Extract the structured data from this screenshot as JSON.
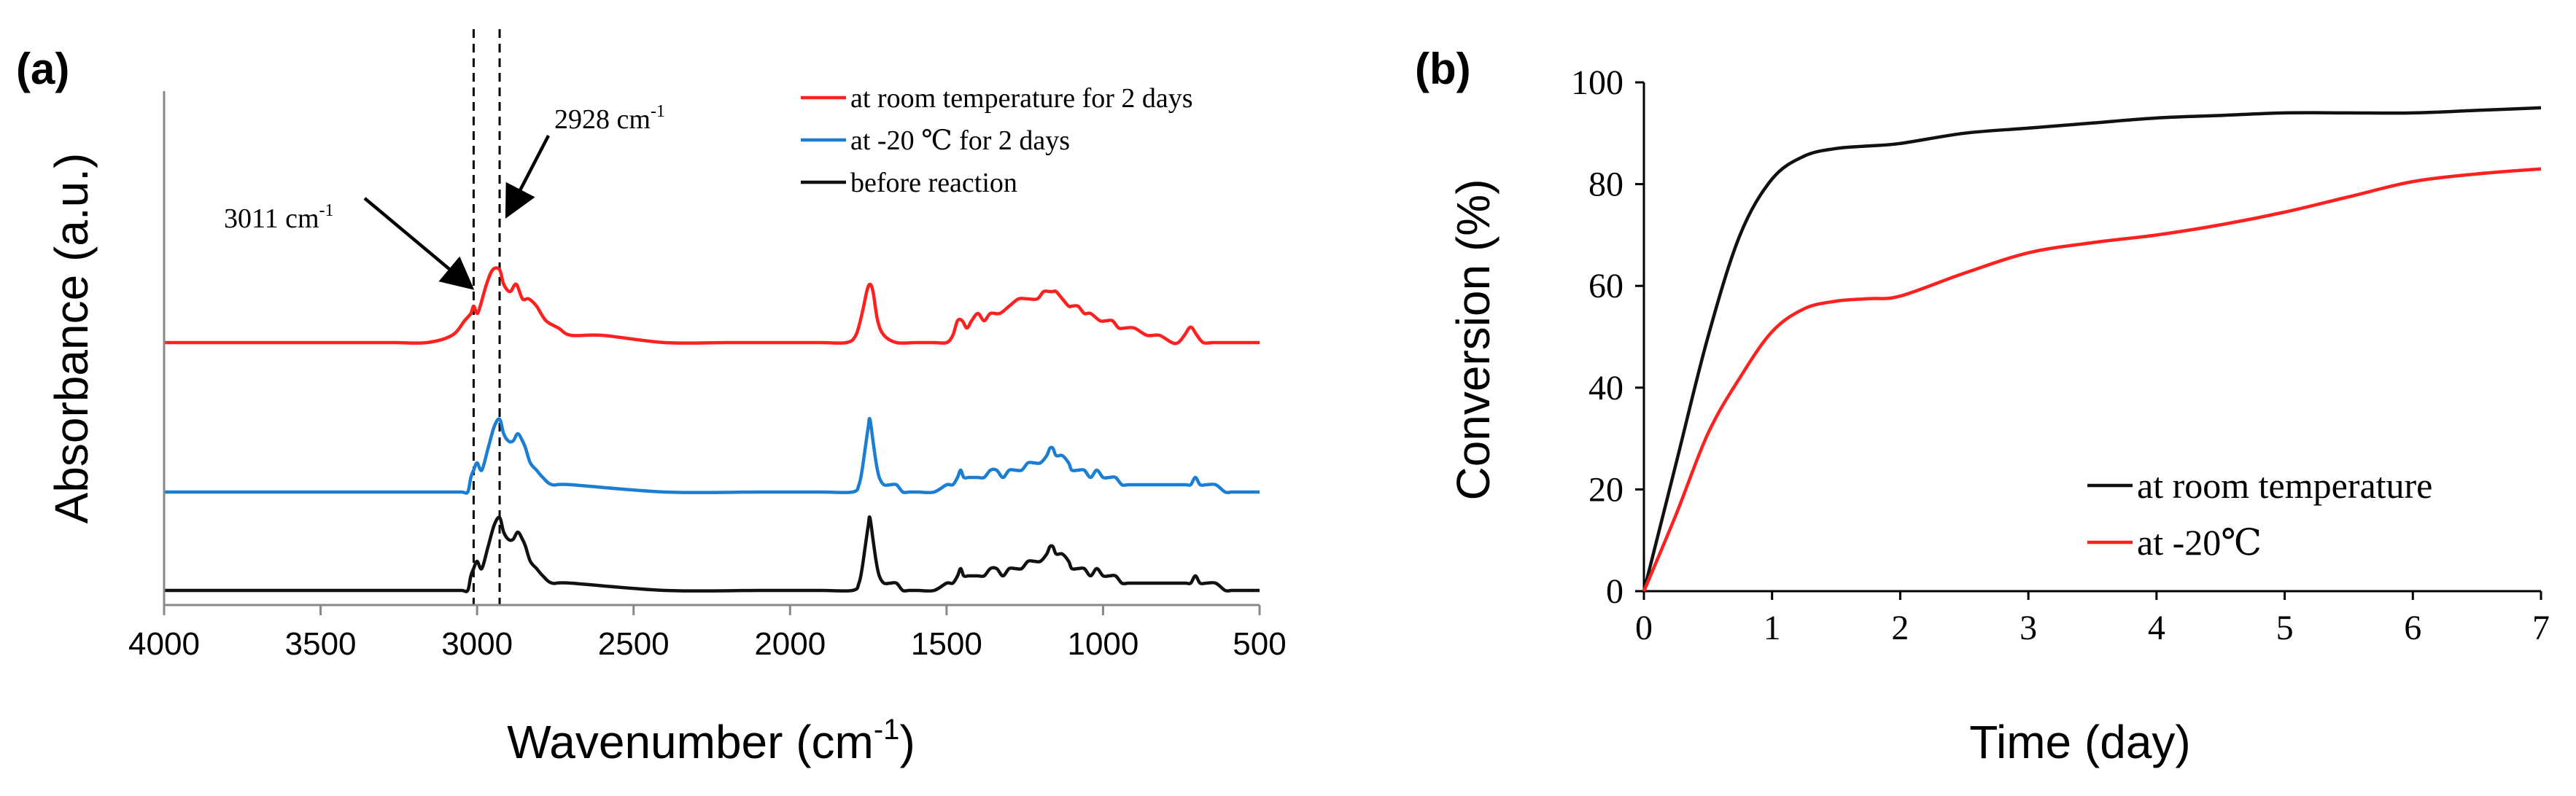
{
  "chart_data": [
    {
      "panel_label": "(a)",
      "type": "line",
      "xlabel": "Wavenumber (cm",
      "xlabel_sup": "-1",
      "xlabel_end": ")",
      "ylabel": "Absorbance (a.u.)",
      "xlim": [
        4000,
        500
      ],
      "x_reversed": true,
      "x_ticks": [
        4000,
        3500,
        3000,
        2500,
        2000,
        1500,
        1000,
        500
      ],
      "y_ticks_shown": false,
      "legend_position": "top-right",
      "reference_lines": [
        3011,
        2928
      ],
      "annotations": [
        {
          "text": "3011 cm",
          "sup": "-1",
          "points_to_x": 3011
        },
        {
          "text": "2928  cm",
          "sup": "-1",
          "points_to_x": 2928
        }
      ],
      "series": [
        {
          "name": "at room temperature for 2 days",
          "color": "#ff2020",
          "x": [
            4000,
            3800,
            3700,
            3600,
            3520,
            3480,
            3440,
            3400,
            3340,
            3260,
            3160,
            3080,
            3040,
            3020,
            3011,
            3000,
            2990,
            2970,
            2950,
            2928,
            2915,
            2895,
            2875,
            2855,
            2835,
            2810,
            2780,
            2740,
            2700,
            2600,
            2400,
            2200,
            2000,
            1900,
            1820,
            1790,
            1770,
            1755,
            1745,
            1735,
            1720,
            1700,
            1660,
            1600,
            1540,
            1500,
            1480,
            1465,
            1450,
            1435,
            1420,
            1400,
            1380,
            1360,
            1330,
            1300,
            1270,
            1240,
            1210,
            1190,
            1170,
            1160,
            1150,
            1130,
            1110,
            1100,
            1080,
            1060,
            1040,
            1010,
            990,
            970,
            950,
            930,
            900,
            860,
            820,
            780,
            760,
            740,
            725,
            715,
            700,
            680,
            650,
            620,
            600,
            580,
            560,
            540,
            500
          ],
          "y": [
            0.3,
            0.3,
            0.3,
            0.3,
            0.3,
            0.3,
            0.3,
            0.3,
            0.3,
            0.3,
            0.3,
            0.31,
            0.33,
            0.34,
            0.35,
            0.34,
            0.35,
            0.38,
            0.4,
            0.4,
            0.38,
            0.37,
            0.38,
            0.36,
            0.36,
            0.35,
            0.33,
            0.32,
            0.31,
            0.31,
            0.3,
            0.3,
            0.3,
            0.3,
            0.3,
            0.31,
            0.34,
            0.37,
            0.38,
            0.37,
            0.33,
            0.31,
            0.3,
            0.3,
            0.3,
            0.3,
            0.31,
            0.33,
            0.33,
            0.32,
            0.33,
            0.34,
            0.33,
            0.34,
            0.34,
            0.35,
            0.36,
            0.36,
            0.36,
            0.37,
            0.37,
            0.37,
            0.37,
            0.36,
            0.35,
            0.35,
            0.35,
            0.34,
            0.34,
            0.33,
            0.33,
            0.33,
            0.32,
            0.32,
            0.32,
            0.31,
            0.31,
            0.3,
            0.3,
            0.31,
            0.32,
            0.32,
            0.31,
            0.3,
            0.3,
            0.3,
            0.3,
            0.3,
            0.3,
            0.3,
            0.3
          ]
        },
        {
          "name": "at -20 ℃ for 2 days",
          "color": "#1a7fd4",
          "x": [
            4000,
            3800,
            3600,
            3500,
            3480,
            3460,
            3400,
            3200,
            3100,
            3050,
            3030,
            3020,
            3011,
            3000,
            2985,
            2965,
            2945,
            2928,
            2915,
            2900,
            2885,
            2870,
            2855,
            2845,
            2830,
            2810,
            2790,
            2760,
            2700,
            2400,
            2100,
            1900,
            1800,
            1780,
            1770,
            1760,
            1750,
            1745,
            1735,
            1725,
            1715,
            1700,
            1680,
            1660,
            1640,
            1620,
            1590,
            1540,
            1500,
            1480,
            1465,
            1455,
            1445,
            1430,
            1415,
            1400,
            1380,
            1360,
            1340,
            1320,
            1300,
            1280,
            1260,
            1240,
            1220,
            1200,
            1180,
            1170,
            1160,
            1150,
            1130,
            1110,
            1100,
            1080,
            1060,
            1040,
            1020,
            1000,
            980,
            960,
            940,
            920,
            900,
            870,
            840,
            800,
            770,
            750,
            735,
            720,
            705,
            690,
            670,
            640,
            610,
            590,
            570,
            540,
            500
          ],
          "y": [
            0.3,
            0.3,
            0.3,
            0.3,
            0.3,
            0.3,
            0.3,
            0.3,
            0.3,
            0.3,
            0.3,
            0.32,
            0.33,
            0.34,
            0.33,
            0.36,
            0.39,
            0.4,
            0.38,
            0.37,
            0.37,
            0.38,
            0.37,
            0.36,
            0.34,
            0.33,
            0.32,
            0.31,
            0.31,
            0.3,
            0.3,
            0.3,
            0.3,
            0.31,
            0.33,
            0.36,
            0.39,
            0.4,
            0.37,
            0.34,
            0.32,
            0.31,
            0.31,
            0.31,
            0.3,
            0.3,
            0.3,
            0.3,
            0.31,
            0.31,
            0.32,
            0.33,
            0.32,
            0.32,
            0.32,
            0.32,
            0.32,
            0.33,
            0.33,
            0.32,
            0.33,
            0.33,
            0.33,
            0.34,
            0.34,
            0.34,
            0.35,
            0.36,
            0.36,
            0.35,
            0.35,
            0.34,
            0.33,
            0.33,
            0.33,
            0.32,
            0.33,
            0.32,
            0.32,
            0.32,
            0.31,
            0.31,
            0.31,
            0.31,
            0.31,
            0.31,
            0.31,
            0.31,
            0.31,
            0.31,
            0.32,
            0.31,
            0.31,
            0.31,
            0.3,
            0.3,
            0.3,
            0.3,
            0.3
          ]
        },
        {
          "name": "before reaction",
          "color": "#111111",
          "x": [
            4000,
            3800,
            3600,
            3500,
            3480,
            3460,
            3400,
            3200,
            3100,
            3050,
            3030,
            3020,
            3011,
            3000,
            2985,
            2965,
            2945,
            2928,
            2915,
            2900,
            2885,
            2870,
            2855,
            2845,
            2830,
            2810,
            2790,
            2760,
            2700,
            2400,
            2100,
            1900,
            1800,
            1780,
            1770,
            1760,
            1750,
            1745,
            1735,
            1725,
            1715,
            1700,
            1680,
            1660,
            1640,
            1620,
            1590,
            1540,
            1500,
            1480,
            1465,
            1455,
            1445,
            1430,
            1415,
            1400,
            1380,
            1360,
            1340,
            1320,
            1300,
            1280,
            1260,
            1240,
            1220,
            1200,
            1180,
            1170,
            1160,
            1150,
            1130,
            1110,
            1100,
            1080,
            1060,
            1040,
            1020,
            1000,
            980,
            960,
            940,
            920,
            900,
            870,
            840,
            800,
            770,
            750,
            735,
            720,
            705,
            690,
            670,
            640,
            610,
            590,
            570,
            540,
            500
          ],
          "y": [
            0.3,
            0.3,
            0.3,
            0.3,
            0.3,
            0.3,
            0.3,
            0.3,
            0.3,
            0.3,
            0.3,
            0.32,
            0.33,
            0.34,
            0.33,
            0.36,
            0.39,
            0.4,
            0.38,
            0.37,
            0.37,
            0.38,
            0.37,
            0.36,
            0.34,
            0.33,
            0.32,
            0.31,
            0.31,
            0.3,
            0.3,
            0.3,
            0.3,
            0.31,
            0.33,
            0.36,
            0.39,
            0.4,
            0.37,
            0.34,
            0.32,
            0.31,
            0.31,
            0.31,
            0.3,
            0.3,
            0.3,
            0.3,
            0.31,
            0.31,
            0.32,
            0.33,
            0.32,
            0.32,
            0.32,
            0.32,
            0.32,
            0.33,
            0.33,
            0.32,
            0.33,
            0.33,
            0.33,
            0.34,
            0.34,
            0.34,
            0.35,
            0.36,
            0.36,
            0.35,
            0.35,
            0.34,
            0.33,
            0.33,
            0.33,
            0.32,
            0.33,
            0.32,
            0.32,
            0.32,
            0.31,
            0.31,
            0.31,
            0.31,
            0.31,
            0.31,
            0.31,
            0.31,
            0.31,
            0.31,
            0.32,
            0.31,
            0.31,
            0.31,
            0.3,
            0.3,
            0.3,
            0.3,
            0.3
          ]
        }
      ]
    },
    {
      "panel_label": "(b)",
      "type": "line",
      "xlabel": "Time (day)",
      "ylabel": "Conversion (%)",
      "xlim": [
        0,
        7
      ],
      "ylim": [
        0,
        100
      ],
      "x_ticks": [
        0,
        1,
        2,
        3,
        4,
        5,
        6,
        7
      ],
      "y_ticks": [
        0,
        20,
        40,
        60,
        80,
        100
      ],
      "grid": false,
      "legend_position": "bottom-right",
      "series": [
        {
          "name": "at room temperature",
          "color": "#111111",
          "x": [
            0,
            0.25,
            0.5,
            0.75,
            1.0,
            1.25,
            1.5,
            1.75,
            2.0,
            2.5,
            3.0,
            3.5,
            4.0,
            4.5,
            5.0,
            5.5,
            6.0,
            6.5,
            7.0
          ],
          "y": [
            0,
            25,
            50,
            70,
            81,
            85.5,
            87,
            87.5,
            88,
            90,
            91,
            92,
            93,
            93.5,
            94,
            94,
            94,
            94.5,
            95
          ]
        },
        {
          "name": "at -20℃",
          "color": "#ff2020",
          "x": [
            0,
            0.25,
            0.5,
            0.75,
            1.0,
            1.25,
            1.5,
            1.75,
            2.0,
            2.5,
            3.0,
            3.5,
            4.0,
            4.5,
            5.0,
            5.5,
            6.0,
            6.5,
            7.0
          ],
          "y": [
            0,
            15,
            31,
            42,
            51,
            55.5,
            57,
            57.5,
            58,
            62.5,
            66.5,
            68.5,
            70,
            72,
            74.5,
            77.5,
            80.5,
            82,
            83
          ]
        }
      ]
    }
  ]
}
